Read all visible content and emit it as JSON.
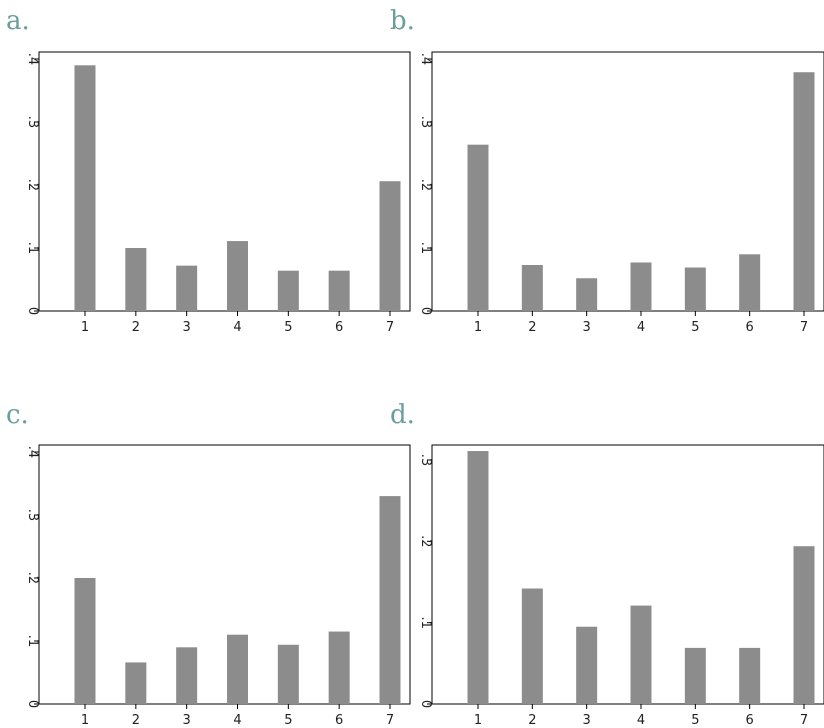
{
  "panels": [
    {
      "label": "a."
    },
    {
      "label": "b."
    },
    {
      "label": "c."
    },
    {
      "label": "d."
    }
  ],
  "style": {
    "bar_color": "#8c8c8c",
    "axis_color": "#000000",
    "label_color": "#6a9e9c"
  },
  "chart_data": [
    {
      "type": "bar",
      "title": "a.",
      "categories": [
        "1",
        "2",
        "3",
        "4",
        "5",
        "6",
        "7"
      ],
      "values": [
        0.39,
        0.1,
        0.072,
        0.111,
        0.064,
        0.064,
        0.206
      ],
      "ylim": [
        0,
        0.4
      ],
      "yticks": [
        0,
        0.1,
        0.2,
        0.3,
        0.4
      ],
      "yticklabels": [
        "0",
        ".1",
        ".2",
        ".3",
        ".4"
      ],
      "grid": false
    },
    {
      "type": "bar",
      "title": "b.",
      "categories": [
        "1",
        "2",
        "3",
        "4",
        "5",
        "6",
        "7"
      ],
      "values": [
        0.264,
        0.073,
        0.052,
        0.077,
        0.069,
        0.09,
        0.379
      ],
      "ylim": [
        0,
        0.4
      ],
      "yticks": [
        0,
        0.1,
        0.2,
        0.3,
        0.4
      ],
      "yticklabels": [
        "0",
        ".1",
        ".2",
        ".3",
        ".4"
      ],
      "grid": false
    },
    {
      "type": "bar",
      "title": "c.",
      "categories": [
        "1",
        "2",
        "3",
        "4",
        "5",
        "6",
        "7"
      ],
      "values": [
        0.2,
        0.066,
        0.09,
        0.11,
        0.094,
        0.115,
        0.33
      ],
      "ylim": [
        0,
        0.4
      ],
      "yticks": [
        0,
        0.1,
        0.2,
        0.3,
        0.4
      ],
      "yticklabels": [
        "0",
        ".1",
        ".2",
        ".3",
        ".4"
      ],
      "grid": false
    },
    {
      "type": "bar",
      "title": "d.",
      "categories": [
        "1",
        "2",
        "3",
        "4",
        "5",
        "6",
        "7"
      ],
      "values": [
        0.311,
        0.142,
        0.095,
        0.121,
        0.069,
        0.069,
        0.194
      ],
      "ylim": [
        0,
        0.3
      ],
      "yticks": [
        0,
        0.1,
        0.2,
        0.3
      ],
      "yticklabels": [
        "0",
        ".1",
        ".2",
        ".3"
      ],
      "grid": false
    }
  ]
}
